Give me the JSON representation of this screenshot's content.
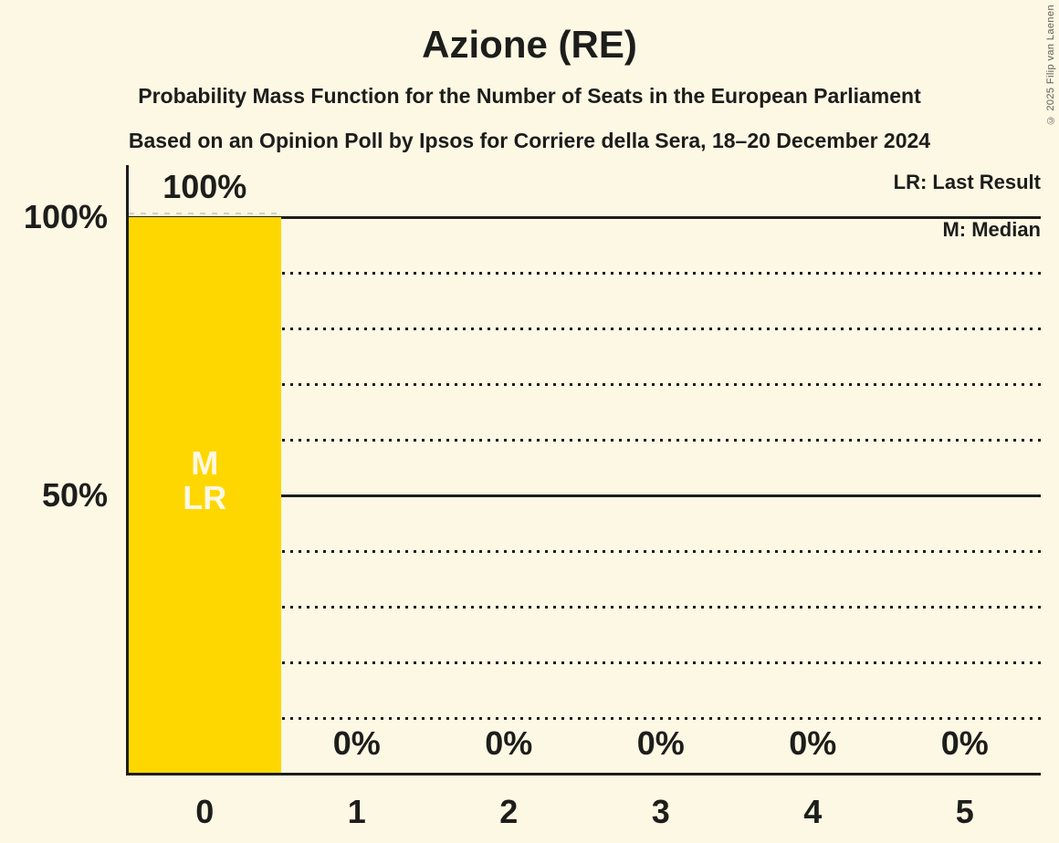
{
  "page": {
    "title": "Azione (RE)",
    "subtitle": "Probability Mass Function for the Number of Seats in the European Parliament",
    "source_line": "Based on an Opinion Poll by Ipsos for Corriere della Sera, 18–20 December 2024",
    "copyright": "© 2025 Filip van Laenen",
    "background_color": "#FCF8E4",
    "text_color": "#1D1D1B"
  },
  "legend": {
    "last_result": "LR: Last Result",
    "median": "M: Median"
  },
  "chart_data": {
    "type": "bar",
    "title": "Azione (RE)",
    "xlabel": "",
    "ylabel": "",
    "categories": [
      "0",
      "1",
      "2",
      "3",
      "4",
      "5"
    ],
    "values": [
      100,
      0,
      0,
      0,
      0,
      0
    ],
    "value_labels": [
      "100%",
      "0%",
      "0%",
      "0%",
      "0%",
      "0%"
    ],
    "ylim": [
      0,
      100
    ],
    "ytick_values": [
      50,
      100
    ],
    "ytick_labels": [
      "50%",
      "100%"
    ],
    "solid_gridlines": [
      50,
      100
    ],
    "dotted_gridlines": [
      10,
      20,
      30,
      40,
      60,
      70,
      80,
      90
    ],
    "grid": true,
    "legend_position": "top-right",
    "legend_entries": [
      "LR: Last Result",
      "M: Median"
    ],
    "bar_color": "#FFD700",
    "bar_label_color": "#FCF8E4",
    "bar_annotations": [
      {
        "category": "0",
        "lines": [
          "M",
          "LR"
        ]
      }
    ],
    "last_result_marker": {
      "category": "0",
      "value": 100
    }
  }
}
